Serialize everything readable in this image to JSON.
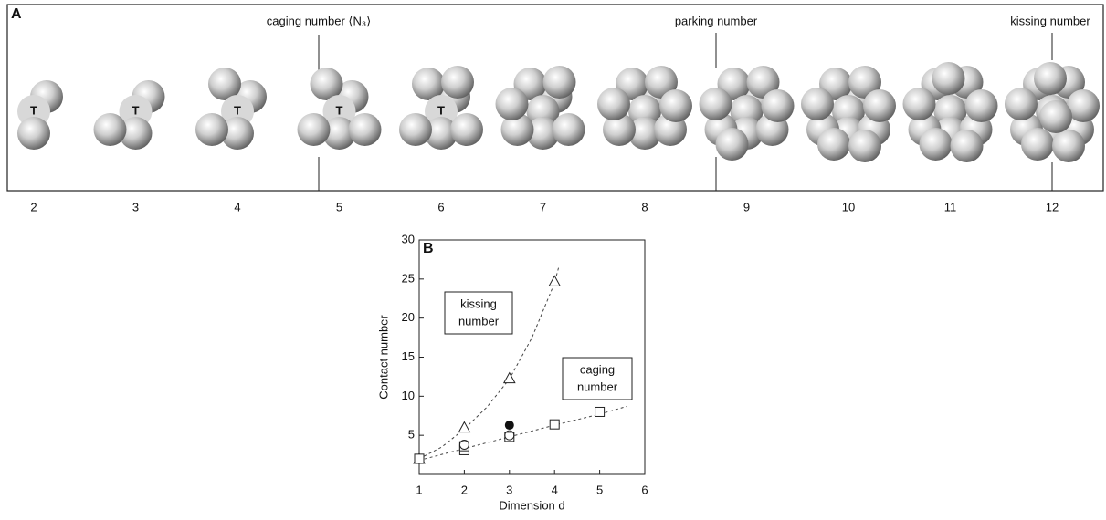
{
  "panel_a": {
    "label": "A",
    "center_label": "T",
    "annotations": {
      "caging": "caging number ⟨N₃⟩",
      "parking": "parking number",
      "kissing": "kissing number"
    },
    "counts": [
      "2",
      "3",
      "4",
      "5",
      "6",
      "7",
      "8",
      "9",
      "10",
      "11",
      "12"
    ]
  },
  "chart_data": {
    "type": "scatter",
    "panel_label": "B",
    "x_label": "Dimension d",
    "y_label": "Contact number",
    "xlim": [
      1,
      6
    ],
    "xticks": [
      1,
      2,
      3,
      4,
      5,
      6
    ],
    "ylim": [
      0,
      30
    ],
    "yticks": [
      5,
      10,
      15,
      20,
      25,
      30
    ],
    "annotations": {
      "kissing": [
        "kissing",
        "number"
      ],
      "caging": [
        "caging",
        "number"
      ]
    },
    "series": [
      {
        "marker": "triangle",
        "x": [
          1,
          2,
          3,
          4
        ],
        "values": [
          2,
          6,
          12.3,
          24.7
        ]
      },
      {
        "marker": "square",
        "x": [
          1,
          2,
          2,
          3,
          4,
          5
        ],
        "values": [
          2,
          3.1,
          3.6,
          4.8,
          6.4,
          8
        ]
      },
      {
        "marker": "circle",
        "x": [
          2,
          3
        ],
        "values": [
          3.8,
          5
        ]
      },
      {
        "marker": "filled-circle",
        "x": [
          3
        ],
        "values": [
          6.3
        ]
      }
    ],
    "fits": [
      {
        "x": [
          1,
          1.5,
          2,
          2.5,
          3,
          3.5,
          4,
          4.1
        ],
        "values": [
          2,
          3.5,
          5.8,
          8.6,
          12.2,
          17.5,
          24.5,
          26.7
        ]
      },
      {
        "x": [
          1,
          2,
          3,
          4,
          5,
          5.6
        ],
        "values": [
          1.8,
          3.3,
          4.8,
          6.3,
          7.7,
          8.7
        ]
      }
    ]
  }
}
